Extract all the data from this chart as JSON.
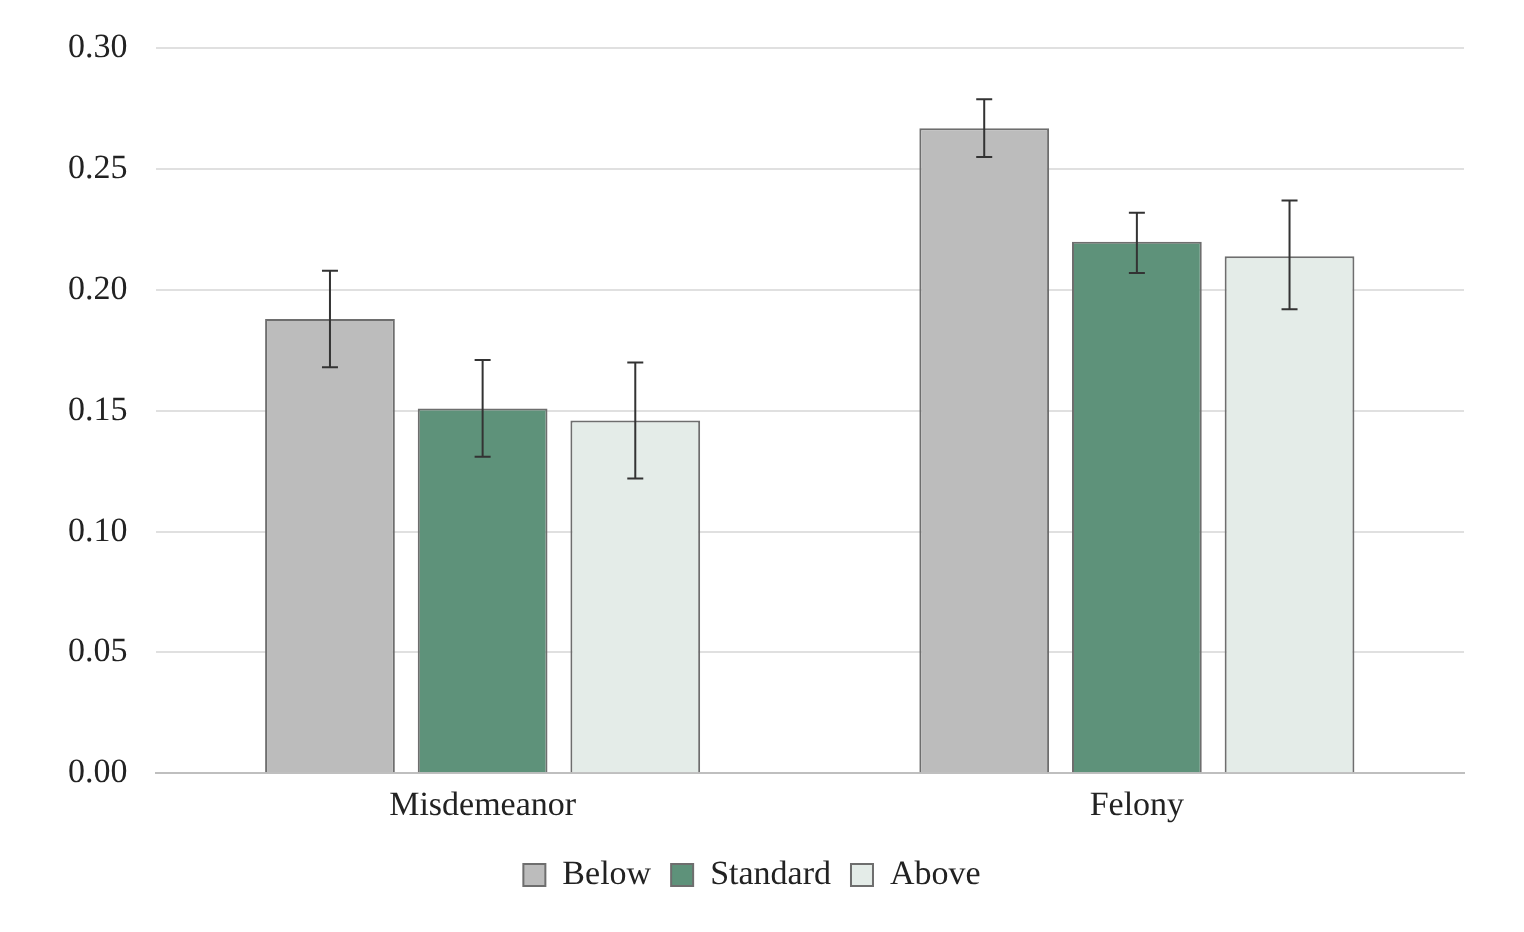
{
  "chart_data": {
    "type": "bar",
    "categories": [
      "Misdemeanor",
      "Felony"
    ],
    "series": [
      {
        "name": "Below",
        "color": "#bcbcbc",
        "values": [
          0.188,
          0.267
        ],
        "errors": [
          [
            0.168,
            0.208
          ],
          [
            0.255,
            0.279
          ]
        ]
      },
      {
        "name": "Standard",
        "color": "#5e927a",
        "values": [
          0.151,
          0.22
        ],
        "errors": [
          [
            0.131,
            0.171
          ],
          [
            0.207,
            0.232
          ]
        ]
      },
      {
        "name": "Above",
        "color": "#e4ece8",
        "values": [
          0.146,
          0.214
        ],
        "errors": [
          [
            0.122,
            0.17
          ],
          [
            0.192,
            0.237
          ]
        ]
      }
    ],
    "ylim": [
      0,
      0.3
    ],
    "yticks": [
      {
        "value": 0,
        "label": "0.00"
      },
      {
        "value": 0.05,
        "label": "0.05"
      },
      {
        "value": 0.1,
        "label": "0.10"
      },
      {
        "value": 0.15,
        "label": "0.15"
      },
      {
        "value": 0.2,
        "label": "0.20"
      },
      {
        "value": 0.25,
        "label": "0.25"
      },
      {
        "value": 0.3,
        "label": "0.30"
      }
    ],
    "grid": "y",
    "legend": "bottom"
  }
}
